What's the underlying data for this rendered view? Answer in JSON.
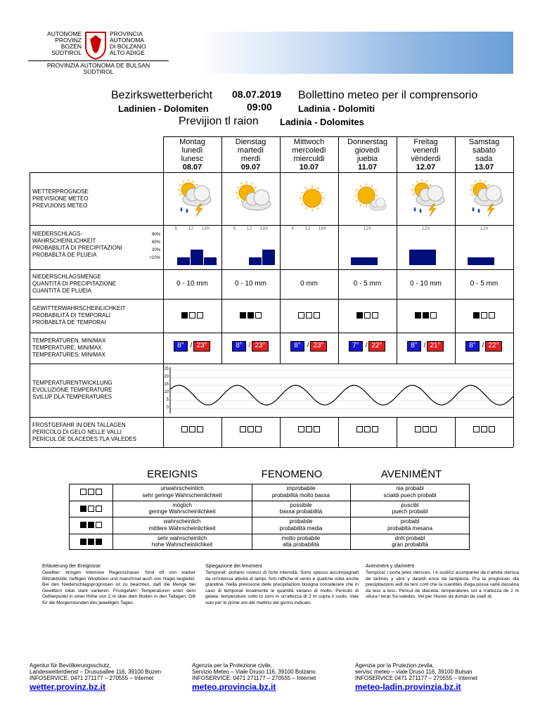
{
  "header": {
    "logo_de": [
      "AUTONOME",
      "PROVINZ",
      "BOZEN",
      "SÜDTIROL"
    ],
    "logo_it": [
      "PROVINCIA",
      "AUTONOMA",
      "DI BOLZANO",
      "ALTO ADIGE"
    ],
    "logo_lad": [
      "PROVINZIA AUTONOMA DE BULSAN",
      "SÜDTIROL"
    ]
  },
  "title": {
    "de": "Bezirkswetterbericht",
    "de_sub": "Ladinien - Dolomiten",
    "date": "08.07.2019",
    "time": "09:00",
    "it": "Bollettino meteo per il comprensorio",
    "it_sub": "Ladinia - Dolomiti",
    "lad": "Previjion tl raion",
    "lad_sub": "Ladinia - Dolomites"
  },
  "days": [
    {
      "de": "Montag",
      "it": "lunedì",
      "lad": "lunesc",
      "date": "08.07",
      "hours": [
        "6",
        "12",
        "18h"
      ],
      "precip_prob": [
        30,
        60,
        30
      ],
      "precip_amount": "0 - 10 mm",
      "thunder": 1,
      "tmin": "8°",
      "tmax": "23°"
    },
    {
      "de": "Dienstag",
      "it": "martedì",
      "lad": "merdi",
      "date": "09.07",
      "hours": [
        "6",
        "12",
        "18h"
      ],
      "precip_prob": [
        0,
        30,
        60
      ],
      "precip_amount": "0 - 10 mm",
      "thunder": 2,
      "tmin": "8°",
      "tmax": "23°"
    },
    {
      "de": "Mittwoch",
      "it": "mercoledì",
      "lad": "mierculdi",
      "date": "10.07",
      "hours": [
        "6",
        "12",
        "18h"
      ],
      "precip_prob": [
        0,
        0,
        0
      ],
      "precip_amount": "0  mm",
      "thunder": 0,
      "tmin": "8°",
      "tmax": "23°"
    },
    {
      "de": "Donnerstag",
      "it": "giovedì",
      "lad": "juebia",
      "date": "11.07",
      "hours": [
        "12h"
      ],
      "precip_prob": [
        30
      ],
      "precip_amount": "0 - 5 mm",
      "thunder": 1,
      "tmin": "7°",
      "tmax": "22°"
    },
    {
      "de": "Freitag",
      "it": "venerdì",
      "lad": "vënderdi",
      "date": "12.07",
      "hours": [
        "12h"
      ],
      "precip_prob": [
        60
      ],
      "precip_amount": "0 - 10 mm",
      "thunder": 2,
      "tmin": "8°",
      "tmax": "21°"
    },
    {
      "de": "Samstag",
      "it": "sabato",
      "lad": "sada",
      "date": "13.07",
      "hours": [
        "12h"
      ],
      "precip_prob": [
        30
      ],
      "precip_amount": "0 - 5 mm",
      "thunder": 1,
      "tmin": "8°",
      "tmax": "22°"
    }
  ],
  "rows": {
    "forecast": [
      "WETTERPROGNOSE",
      "PREVISIONE METEO",
      "PREVIJIONS METEO"
    ],
    "precip_prob": [
      "NIEDERSCHLAGS-",
      "WAHRSCHEINLICHKEIT",
      "PROBABILITÀ DI PRECIPITAZIONI",
      "PROBABLTÀ DE PLUEIA"
    ],
    "precip_amount": [
      "NIEDERSCHLAGSMENGE",
      "QUANTITÀ DI PRECIPITAZIONE",
      "CUANTITÀ DE PLUEIA"
    ],
    "thunder": [
      "GEWITTERWAHRSCHEINLICHKEIT",
      "PROBABILITÀ DI TEMPORALI",
      "PROBABLTÀ DE TEMPORAI"
    ],
    "temps": [
      "TEMPERATUREN, MIN/MAX",
      "TEMPERATURE, MIN/MAX",
      "TEMPERATURES: MIN/MAX"
    ],
    "evolution": [
      "TEMPERATURENTWICKLUNG",
      "EVOLUZIONE TEMPERATURE",
      "SVILUP DLA TEMPERATURES"
    ],
    "frost": [
      "FROSTGEFAHR IN DEN TALLAGEN",
      "PERICOLO DI GELO NELLE VALLI",
      "PERICUL DE DLACEDES TLA VALEDES"
    ]
  },
  "prob_scale": [
    "90%",
    "60%",
    "30%",
    "<10%"
  ],
  "temp_axis": [
    "25",
    "20",
    "15",
    "10",
    "5",
    "0"
  ],
  "legend": {
    "headings": [
      "EREIGNIS",
      "FENOMENO",
      "AVENIMËNT"
    ],
    "rows": [
      {
        "level": 0,
        "de": [
          "unwahrscheinlich",
          "sehr geringe Wahrscheinlichkeit"
        ],
        "it": [
          "improbabile",
          "probabilità molto bassa"
        ],
        "lad": [
          "nia probabl",
          "scialdi puech probabl"
        ]
      },
      {
        "level": 1,
        "de": [
          "möglich",
          "geringe Wahrscheinlichkeit"
        ],
        "it": [
          "possibile",
          "bassa probabilità"
        ],
        "lad": [
          "puscibl",
          "puech probabl"
        ]
      },
      {
        "level": 2,
        "de": [
          "wahrscheinlich",
          "mittlere Wahrscheinlichkeit"
        ],
        "it": [
          "probabile",
          "probabilità media"
        ],
        "lad": [
          "probabl",
          "probabltà mesana"
        ]
      },
      {
        "level": 3,
        "de": [
          "sehr wahrscheinlich",
          "hohe Wahrscheinlichkeit"
        ],
        "it": [
          "molto probabile",
          "alta probabilità"
        ],
        "lad": [
          "drët probabl",
          "gran probabltà"
        ]
      }
    ]
  },
  "explanations": [
    {
      "title": "Erläuterung der Ereignisse",
      "text": "Gewitter: bringen intensive Regenschauer. Sind oft von starker Blitzaktivität, heftigen Windböen und manchmal auch von Hagel begleitet. Bei den Niederschlagsprognosen ist zu beachten, daß die Menge bei Gewittern lokal stark variieren. Frostgefahr: Temperaturen unter dem Gefrierpunkt in einer Höhe von 2 m über dem Boden in den Tallagen. Gilt für die Morgenstunden des jeweiligen Tages."
    },
    {
      "title": "Spiegazione dei fenomeni",
      "text": "Temporali: portano rovesci di forte intensità. Sono spesso accompagnati da un'intensa attività di lampi, forti raffiche di vento e qualche volta anche grandine. Nella previsione delle precipitazioni bisogna considerare che in caso di temporali localmente le quantità variano di molto. Pericolo di gelata: temperature sotto lo zero in un'altezza di 2 m sopra il suolo. Vale solo per le prime ore del mattino del giorno indicato."
    },
    {
      "title": "Avenimënt y sfarimënt",
      "text": "Temporai: i porta jetes stersces. I é suvënz acumpaniei da n'atività stersca de tarlines y vënt y dataldì ence da tampesta. Pra la prognoses dla precipitazions iedl da tení cont che la cuantités d'ega possa variè dassëna da lesc a lesc. Pericul de dlaceda: temperatures sot a n'altezza de 2 m sëura l terac fra valedes. Vel per l'ëures da dumán de ciadì di."
    }
  ],
  "footer": [
    {
      "lines": [
        "Agentur für Bevölkerungsschutz,",
        "Landeswetterdienst – Drususallee 116, 39100 Bozen",
        "INFOSERVICE: 0471 271177 – 270555 – Internet"
      ],
      "link": "wetter.provinz.bz.it"
    },
    {
      "lines": [
        "Agenzia per la Protezione civile,",
        "Servizio Meteo – Viale Druso 116, 39100 Bolzano",
        "INFOSERVICE: 0471 271177 – 270555 – Internet"
      ],
      "link": "meteo.provincia.bz.it"
    },
    {
      "lines": [
        "Agenzia por la Prutezion zevila,",
        "servisc meteo – viale Druso 116, 39100 Bulsan",
        "INFOSERVICE 0471 271177 – 270555 – Internet"
      ],
      "link": "meteo-ladin.provinzia.bz.it"
    }
  ]
}
